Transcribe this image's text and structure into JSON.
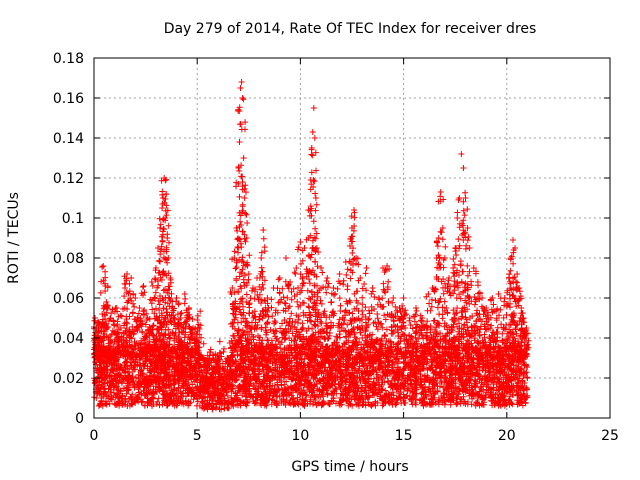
{
  "chart_data": {
    "type": "scatter",
    "title": "Day 279 of 2014, Rate Of TEC Index for receiver dres",
    "xlabel": "GPS time / hours",
    "ylabel": "ROTI / TECUs",
    "xlim": [
      0,
      25
    ],
    "ylim": [
      0,
      0.18
    ],
    "xticks": [
      0,
      5,
      10,
      15,
      20,
      25
    ],
    "xtick_labels": [
      "0",
      "5",
      "10",
      "15",
      "20",
      "25"
    ],
    "yticks": [
      0,
      0.02,
      0.04,
      0.06,
      0.08,
      0.1,
      0.12,
      0.14,
      0.16,
      0.18
    ],
    "ytick_labels": [
      "0",
      "0.02",
      "0.04",
      "0.06",
      "0.08",
      "0.1",
      "0.12",
      "0.14",
      "0.16",
      "0.18"
    ],
    "grid": true,
    "marker": "plus",
    "color": "#ff0000",
    "points": [
      [
        0.05,
        0.05
      ],
      [
        0.1,
        0.045
      ],
      [
        0.2,
        0.048
      ],
      [
        0.3,
        0.04
      ],
      [
        0.4,
        0.052
      ],
      [
        0.45,
        0.076
      ],
      [
        0.55,
        0.066
      ],
      [
        0.6,
        0.058
      ],
      [
        0.7,
        0.035
      ],
      [
        0.9,
        0.03
      ],
      [
        1.1,
        0.055
      ],
      [
        1.3,
        0.045
      ],
      [
        1.5,
        0.065
      ],
      [
        1.6,
        0.072
      ],
      [
        1.8,
        0.07
      ],
      [
        2.0,
        0.06
      ],
      [
        2.2,
        0.055
      ],
      [
        2.4,
        0.066
      ],
      [
        2.6,
        0.05
      ],
      [
        2.8,
        0.068
      ],
      [
        3.0,
        0.075
      ],
      [
        3.1,
        0.085
      ],
      [
        3.2,
        0.095
      ],
      [
        3.3,
        0.105
      ],
      [
        3.35,
        0.11
      ],
      [
        3.4,
        0.12
      ],
      [
        3.45,
        0.1
      ],
      [
        3.5,
        0.112
      ],
      [
        3.55,
        0.09
      ],
      [
        3.6,
        0.08
      ],
      [
        3.7,
        0.07
      ],
      [
        3.8,
        0.055
      ],
      [
        4.0,
        0.06
      ],
      [
        4.2,
        0.05
      ],
      [
        4.4,
        0.062
      ],
      [
        4.6,
        0.055
      ],
      [
        4.8,
        0.045
      ],
      [
        5.0,
        0.04
      ],
      [
        5.2,
        0.03
      ],
      [
        5.5,
        0.025
      ],
      [
        6.0,
        0.025
      ],
      [
        6.5,
        0.028
      ],
      [
        6.7,
        0.065
      ],
      [
        6.8,
        0.08
      ],
      [
        6.9,
        0.095
      ],
      [
        7.0,
        0.125
      ],
      [
        7.05,
        0.138
      ],
      [
        7.1,
        0.165
      ],
      [
        7.15,
        0.168
      ],
      [
        7.2,
        0.16
      ],
      [
        7.25,
        0.13
      ],
      [
        7.3,
        0.11
      ],
      [
        7.4,
        0.09
      ],
      [
        7.5,
        0.072
      ],
      [
        7.7,
        0.065
      ],
      [
        7.9,
        0.07
      ],
      [
        8.1,
        0.08
      ],
      [
        8.2,
        0.094
      ],
      [
        8.4,
        0.06
      ],
      [
        8.7,
        0.065
      ],
      [
        9.0,
        0.07
      ],
      [
        9.3,
        0.08
      ],
      [
        9.5,
        0.068
      ],
      [
        9.8,
        0.075
      ],
      [
        10.0,
        0.088
      ],
      [
        10.2,
        0.085
      ],
      [
        10.4,
        0.09
      ],
      [
        10.5,
        0.119
      ],
      [
        10.55,
        0.135
      ],
      [
        10.6,
        0.143
      ],
      [
        10.65,
        0.155
      ],
      [
        10.7,
        0.14
      ],
      [
        10.75,
        0.11
      ],
      [
        10.8,
        0.085
      ],
      [
        11.0,
        0.075
      ],
      [
        11.3,
        0.07
      ],
      [
        11.6,
        0.065
      ],
      [
        11.9,
        0.072
      ],
      [
        12.2,
        0.078
      ],
      [
        12.4,
        0.086
      ],
      [
        12.5,
        0.095
      ],
      [
        12.6,
        0.104
      ],
      [
        12.7,
        0.08
      ],
      [
        12.9,
        0.07
      ],
      [
        13.2,
        0.075
      ],
      [
        13.5,
        0.065
      ],
      [
        13.8,
        0.06
      ],
      [
        14.0,
        0.075
      ],
      [
        14.2,
        0.076
      ],
      [
        14.5,
        0.06
      ],
      [
        14.8,
        0.055
      ],
      [
        15.0,
        0.06
      ],
      [
        15.3,
        0.05
      ],
      [
        15.6,
        0.055
      ],
      [
        15.9,
        0.05
      ],
      [
        16.2,
        0.062
      ],
      [
        16.4,
        0.065
      ],
      [
        16.6,
        0.08
      ],
      [
        16.7,
        0.09
      ],
      [
        16.8,
        0.113
      ],
      [
        16.9,
        0.095
      ],
      [
        17.0,
        0.08
      ],
      [
        17.2,
        0.07
      ],
      [
        17.4,
        0.075
      ],
      [
        17.5,
        0.085
      ],
      [
        17.6,
        0.1
      ],
      [
        17.7,
        0.11
      ],
      [
        17.8,
        0.132
      ],
      [
        17.9,
        0.125
      ],
      [
        18.0,
        0.11
      ],
      [
        18.1,
        0.095
      ],
      [
        18.2,
        0.085
      ],
      [
        18.4,
        0.075
      ],
      [
        18.6,
        0.068
      ],
      [
        18.8,
        0.06
      ],
      [
        19.0,
        0.055
      ],
      [
        19.3,
        0.06
      ],
      [
        19.6,
        0.062
      ],
      [
        19.9,
        0.06
      ],
      [
        20.1,
        0.07
      ],
      [
        20.2,
        0.08
      ],
      [
        20.3,
        0.089
      ],
      [
        20.4,
        0.085
      ],
      [
        20.5,
        0.072
      ],
      [
        20.6,
        0.065
      ],
      [
        20.7,
        0.055
      ],
      [
        20.8,
        0.05
      ],
      [
        20.95,
        0.045
      ]
    ]
  }
}
